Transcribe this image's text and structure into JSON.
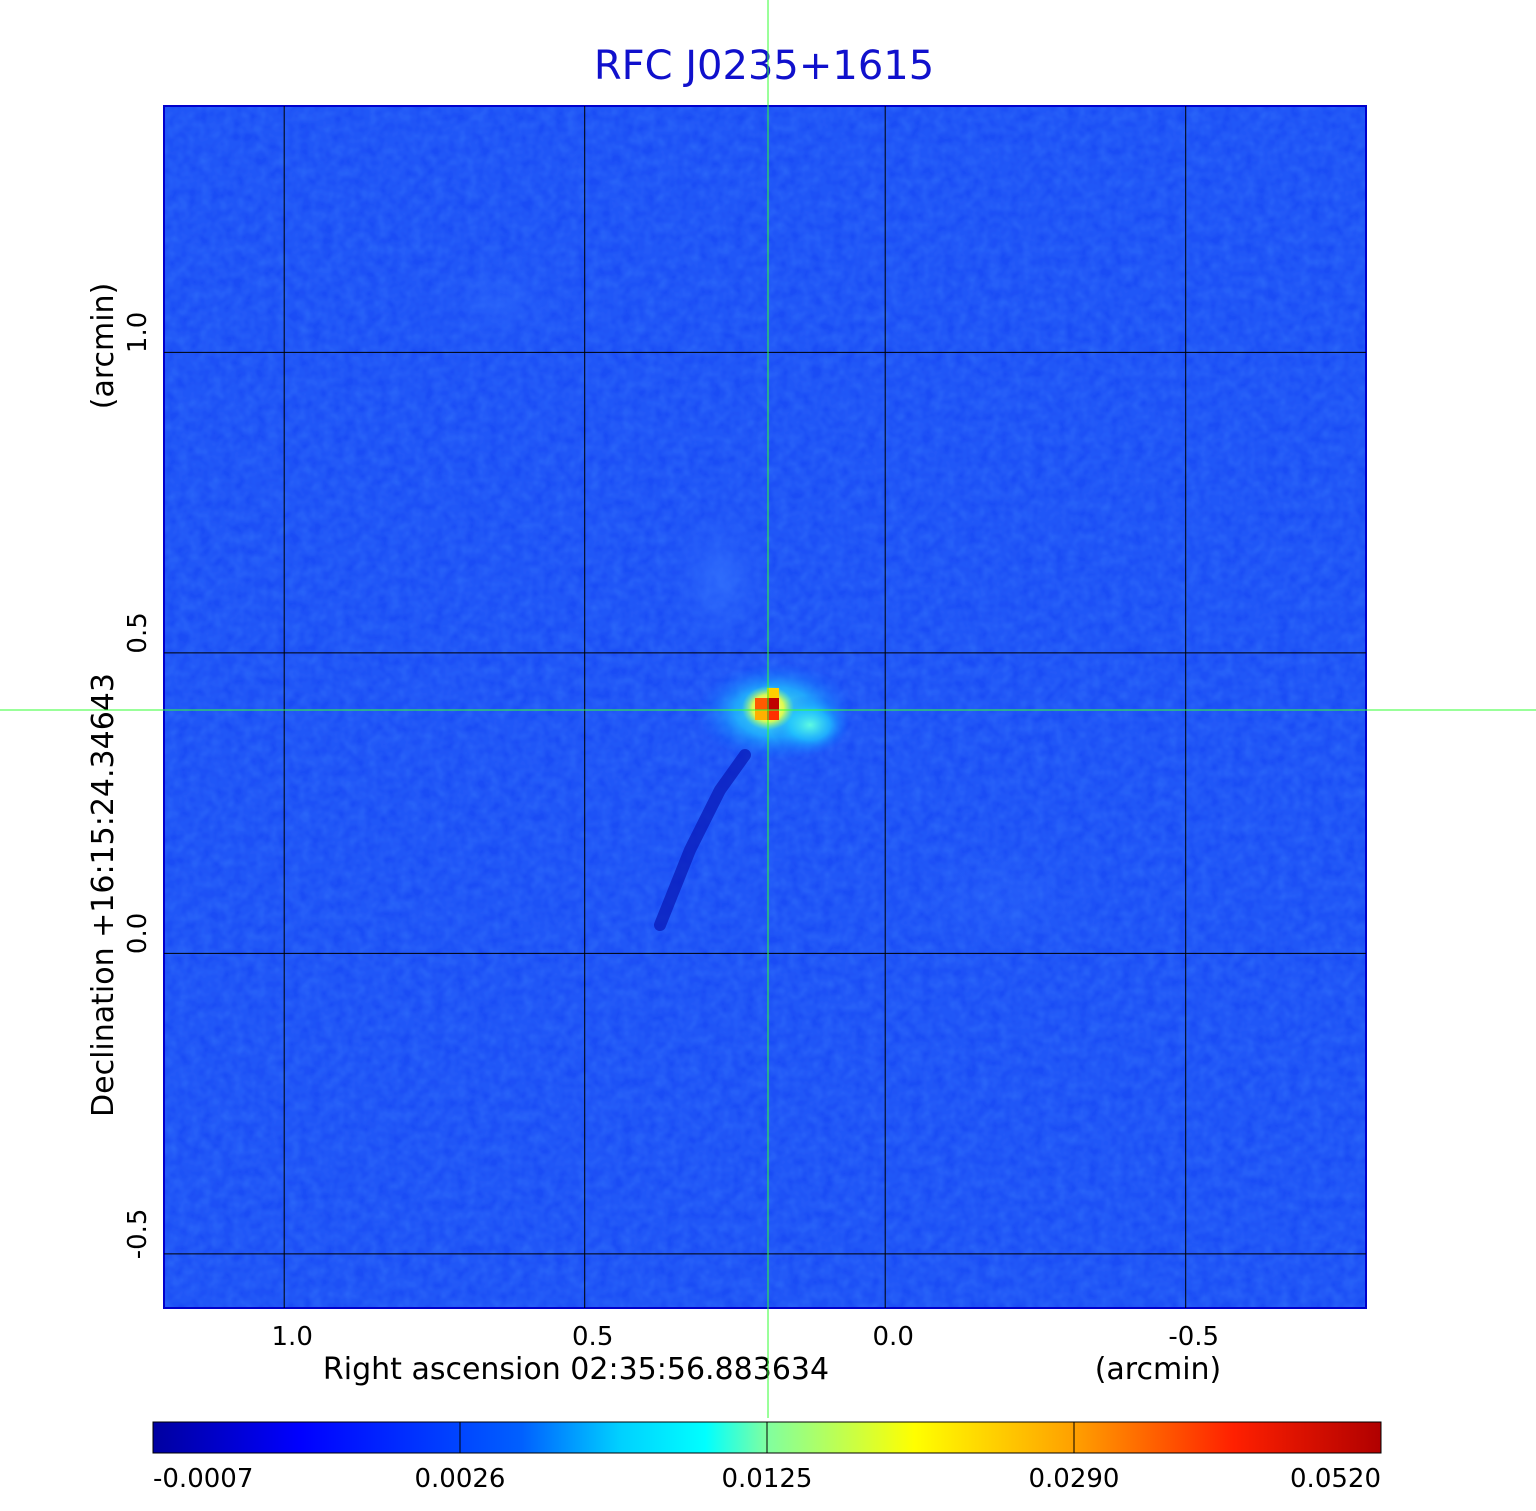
{
  "chart_data": {
    "type": "heatmap",
    "title": "RFC J0235+1615",
    "xlabel": "Right ascension  02:35:56.883634",
    "xunit": "(arcmin)",
    "ylabel": "Declination  +16:15:24.34643",
    "yunit": "(arcmin)",
    "x_ticks": [
      1.0,
      0.5,
      0.0,
      -0.5
    ],
    "x_tick_labels": [
      "1.0",
      "0.5",
      "0.0",
      "-0.5"
    ],
    "y_ticks": [
      1.0,
      0.5,
      0.0,
      -0.5
    ],
    "y_tick_labels": [
      "1.0",
      "0.5",
      "0.0",
      "-0.5"
    ],
    "xlim": [
      1.2,
      -0.8
    ],
    "ylim": [
      -0.59,
      1.41
    ],
    "grid": true,
    "colormap": "jet",
    "crosshair": {
      "x": 0.195,
      "y": 0.405
    },
    "peak": {
      "x": 0.195,
      "y": 0.405,
      "value": 0.052
    },
    "colorbar": {
      "ticks": [
        "-0.0007",
        "0.0026",
        "0.0125",
        "0.0290",
        "0.0520"
      ],
      "range": [
        -0.0007,
        0.052
      ]
    }
  },
  "colors": {
    "title": "#1010cc",
    "background_field": "#1a4cf5",
    "grid": "#000000",
    "crosshair": "#33ff33"
  }
}
